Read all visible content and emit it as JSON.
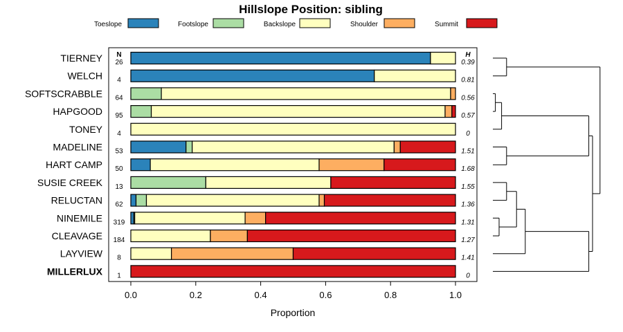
{
  "chart_data": {
    "type": "bar",
    "orientation": "horizontal-stacked",
    "title": "Hillslope Position: sibling",
    "xlabel": "Proportion",
    "xlim": [
      0,
      1
    ],
    "x_ticks": [
      "0.0",
      "0.2",
      "0.4",
      "0.6",
      "0.8",
      "1.0"
    ],
    "x_tick_values": [
      0,
      0.2,
      0.4,
      0.6,
      0.8,
      1.0
    ],
    "n_header": "N",
    "h_header": "H",
    "legend": [
      {
        "name": "Toeslope",
        "color": "#2B83BA"
      },
      {
        "name": "Footslope",
        "color": "#ABDDA4"
      },
      {
        "name": "Backslope",
        "color": "#FFFFBF"
      },
      {
        "name": "Shoulder",
        "color": "#FDAE61"
      },
      {
        "name": "Summit",
        "color": "#D7191C"
      }
    ],
    "rows": [
      {
        "name": "TIERNEY",
        "n": "26",
        "h": "0.39",
        "bold": false,
        "values": [
          0.923,
          0,
          0.077,
          0,
          0
        ]
      },
      {
        "name": "WELCH",
        "n": "4",
        "h": "0.81",
        "bold": false,
        "values": [
          0.75,
          0,
          0.25,
          0,
          0
        ]
      },
      {
        "name": "SOFTSCRABBLE",
        "n": "64",
        "h": "0.56",
        "bold": false,
        "values": [
          0,
          0.094,
          0.891,
          0.015,
          0
        ]
      },
      {
        "name": "HAPGOOD",
        "n": "95",
        "h": "0.57",
        "bold": false,
        "values": [
          0,
          0.063,
          0.905,
          0.021,
          0.011
        ]
      },
      {
        "name": "TONEY",
        "n": "4",
        "h": "0",
        "bold": false,
        "values": [
          0,
          0,
          1.0,
          0,
          0
        ]
      },
      {
        "name": "MADELINE",
        "n": "53",
        "h": "1.51",
        "bold": false,
        "values": [
          0.17,
          0.019,
          0.622,
          0.019,
          0.17
        ]
      },
      {
        "name": "HART CAMP",
        "n": "50",
        "h": "1.68",
        "bold": false,
        "values": [
          0.06,
          0,
          0.52,
          0.2,
          0.22
        ]
      },
      {
        "name": "SUSIE CREEK",
        "n": "13",
        "h": "1.55",
        "bold": false,
        "values": [
          0,
          0.231,
          0.385,
          0,
          0.384
        ]
      },
      {
        "name": "RELUCTAN",
        "n": "62",
        "h": "1.36",
        "bold": false,
        "values": [
          0.016,
          0.032,
          0.532,
          0.016,
          0.404
        ]
      },
      {
        "name": "NINEMILE",
        "n": "319",
        "h": "1.31",
        "bold": false,
        "values": [
          0.009,
          0.003,
          0.34,
          0.063,
          0.585
        ]
      },
      {
        "name": "CLEAVAGE",
        "n": "184",
        "h": "1.27",
        "bold": false,
        "values": [
          0,
          0,
          0.245,
          0.114,
          0.641
        ]
      },
      {
        "name": "LAYVIEW",
        "n": "8",
        "h": "1.41",
        "bold": false,
        "values": [
          0,
          0,
          0.125,
          0.375,
          0.5
        ]
      },
      {
        "name": "MILLERLUX",
        "n": "1",
        "h": "0",
        "bold": true,
        "values": [
          0,
          0,
          0,
          0,
          1.0
        ]
      }
    ],
    "dendrogram": {
      "leaf_order": [
        "TIERNEY",
        "WELCH",
        "SOFTSCRABBLE",
        "HAPGOOD",
        "TONEY",
        "MADELINE",
        "HART CAMP",
        "SUSIE CREEK",
        "RELUCTAN",
        "NINEMILE",
        "CLEAVAGE",
        "LAYVIEW",
        "MILLERLUX"
      ],
      "merges": [
        {
          "a": "SOFTSCRABBLE",
          "b": "HAPGOOD",
          "height": 0.02
        },
        {
          "a": "NINEMILE",
          "b": "CLEAVAGE",
          "height": 0.05
        },
        {
          "a": "MADELINE",
          "b": "HART CAMP",
          "height": 0.11
        },
        {
          "a": "TIERNEY",
          "b": "WELCH",
          "height": 0.11
        },
        {
          "a": "SUSIE CREEK",
          "b": "RELUCTAN",
          "height": 0.11
        },
        {
          "a": "SOFTSCRABBLE+HAPGOOD",
          "b": "TONEY",
          "height": 0.07
        },
        {
          "a": "SUSIE CREEK+RELUCTAN",
          "b": "NINEMILE+CLEAVAGE",
          "height": 0.19
        },
        {
          "a": "SUSIE CREEK..CLEAVAGE",
          "b": "LAYVIEW",
          "height": 0.26
        },
        {
          "a": "SOFTSCRABBLE..TONEY",
          "b": "MADELINE+HART CAMP",
          "height": 0.77
        },
        {
          "a": "SUSIE CREEK..LAYVIEW",
          "b": "MILLERLUX",
          "height": 0.77
        },
        {
          "a": "SOFTSCRABBLE..HART CAMP",
          "b": "SUSIE CREEK..MILLERLUX",
          "height": 0.8
        },
        {
          "a": "TIERNEY+WELCH",
          "b": "SOFTSCRABBLE..MILLERLUX",
          "height": 0.86
        }
      ]
    }
  }
}
